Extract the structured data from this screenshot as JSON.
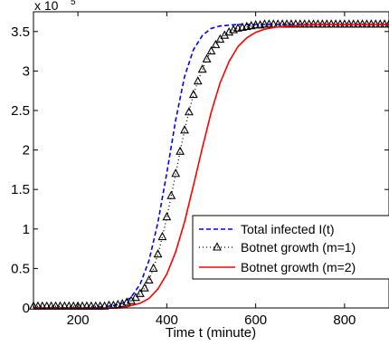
{
  "chart_data": {
    "type": "line",
    "xlabel": "Time t (minute)",
    "ylabel": "",
    "multiplier_label": {
      "base": "x 10",
      "exponent": "5"
    },
    "xlim": [
      100,
      900
    ],
    "ylim": [
      0,
      3.75
    ],
    "x_ticks": [
      200,
      400,
      600,
      800
    ],
    "y_ticks": [
      0,
      0.5,
      1,
      1.5,
      2,
      2.5,
      3,
      3.5
    ],
    "grid": false,
    "legend_position": "bottom-right",
    "series": [
      {
        "name": "Total infected I(t)",
        "color": "#0000ff",
        "style": "dashed",
        "x": [
          100,
          150,
          200,
          250,
          280,
          300,
          320,
          340,
          360,
          380,
          400,
          420,
          440,
          460,
          480,
          500,
          520,
          540,
          560,
          580,
          600,
          620,
          650,
          700,
          800,
          900
        ],
        "y": [
          0.0,
          0.0,
          0.0,
          0.01,
          0.03,
          0.06,
          0.14,
          0.3,
          0.6,
          1.08,
          1.71,
          2.38,
          2.93,
          3.27,
          3.45,
          3.54,
          3.57,
          3.58,
          3.59,
          3.59,
          3.59,
          3.59,
          3.59,
          3.59,
          3.59,
          3.59
        ]
      },
      {
        "name": "Botnet growth (m=1)",
        "color": "#000000",
        "style": "dotted-triangle",
        "x": [
          100,
          110,
          120,
          130,
          140,
          150,
          160,
          170,
          180,
          190,
          200,
          210,
          220,
          230,
          240,
          250,
          260,
          270,
          280,
          290,
          300,
          310,
          320,
          330,
          340,
          350,
          360,
          370,
          380,
          390,
          400,
          410,
          420,
          430,
          440,
          450,
          460,
          470,
          480,
          490,
          500,
          510,
          520,
          530,
          540,
          550,
          560,
          570,
          580,
          590,
          600,
          610,
          620,
          630,
          640,
          650,
          660,
          670,
          680,
          690,
          700,
          710,
          720,
          730,
          740,
          750,
          760,
          770,
          780,
          790,
          800,
          810,
          820,
          830,
          840,
          850,
          860,
          870,
          880,
          890,
          900
        ],
        "y": [
          0.02,
          0.02,
          0.02,
          0.02,
          0.02,
          0.02,
          0.02,
          0.02,
          0.02,
          0.02,
          0.02,
          0.02,
          0.02,
          0.02,
          0.02,
          0.02,
          0.02,
          0.03,
          0.03,
          0.04,
          0.05,
          0.07,
          0.09,
          0.13,
          0.18,
          0.25,
          0.35,
          0.5,
          0.68,
          0.9,
          1.15,
          1.42,
          1.7,
          1.98,
          2.25,
          2.48,
          2.7,
          2.87,
          3.02,
          3.15,
          3.25,
          3.33,
          3.4,
          3.45,
          3.49,
          3.52,
          3.54,
          3.55,
          3.56,
          3.57,
          3.58,
          3.58,
          3.59,
          3.59,
          3.59,
          3.59,
          3.59,
          3.59,
          3.59,
          3.59,
          3.59,
          3.59,
          3.59,
          3.59,
          3.59,
          3.59,
          3.59,
          3.59,
          3.59,
          3.59,
          3.59,
          3.59,
          3.59,
          3.59,
          3.59,
          3.59,
          3.59,
          3.59,
          3.59,
          3.59,
          3.59
        ]
      },
      {
        "name": "Botnet growth (m=2)",
        "color": "#ff0000",
        "style": "solid",
        "x": [
          100,
          200,
          300,
          340,
          360,
          380,
          400,
          420,
          440,
          460,
          480,
          500,
          520,
          540,
          560,
          580,
          600,
          620,
          650,
          700,
          750,
          800,
          900
        ],
        "y": [
          0.0,
          0.0,
          0.0,
          0.06,
          0.12,
          0.24,
          0.43,
          0.71,
          1.09,
          1.55,
          2.03,
          2.48,
          2.85,
          3.12,
          3.31,
          3.42,
          3.49,
          3.53,
          3.56,
          3.58,
          3.59,
          3.59,
          3.59
        ]
      }
    ]
  }
}
